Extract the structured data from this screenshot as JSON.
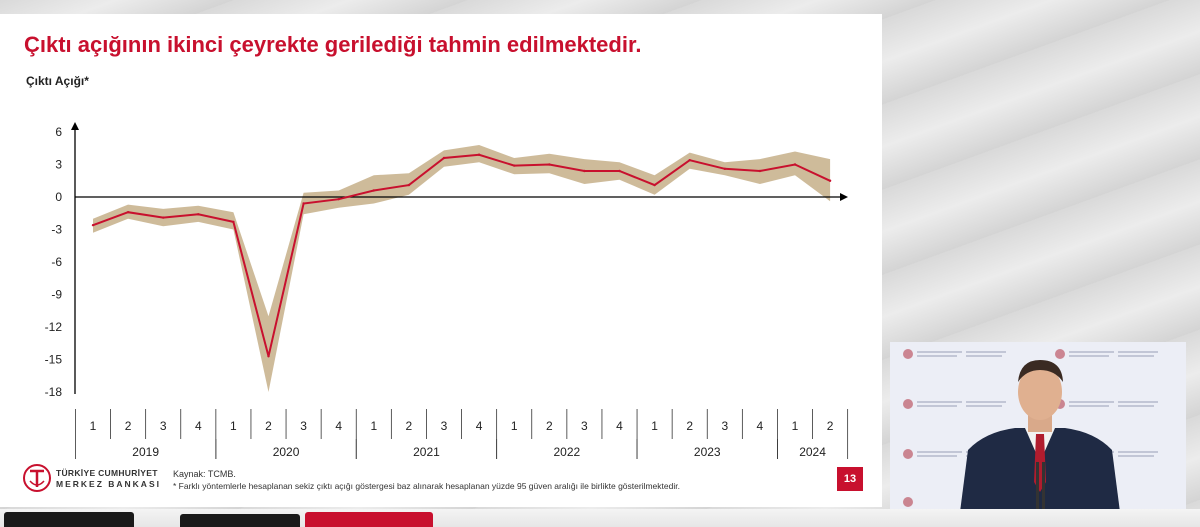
{
  "slide": {
    "title": "Çıktı açığının ikinci çeyrekte gerilediği tahmin edilmektedir.",
    "page_number": "13",
    "source": "Kaynak: TCMB.",
    "footnote": "* Farklı yöntemlerle hesaplanan sekiz çıktı açığı göstergesi baz alınarak hesaplanan yüzde 95 güven aralığı ile birlikte gösterilmektedir.",
    "logo": {
      "line1": "TÜRKİYE CUMHURİYET",
      "line2": "MERKEZ BANKASI",
      "mark": "TCMB"
    }
  },
  "colors": {
    "title": "#c8102e",
    "line": "#c8102e",
    "band": "#c9b48f",
    "axis": "#000000"
  },
  "chart_data": {
    "type": "line",
    "ylabel": "Çıktı Açığı*",
    "xlabel": "",
    "ylim": [
      -18,
      6
    ],
    "yticks": [
      6,
      3,
      0,
      -3,
      -6,
      -9,
      -12,
      -15,
      -18
    ],
    "grid": false,
    "x_quarters": [
      "1",
      "2",
      "3",
      "4",
      "1",
      "2",
      "3",
      "4",
      "1",
      "2",
      "3",
      "4",
      "1",
      "2",
      "3",
      "4",
      "1",
      "2",
      "3",
      "4",
      "1",
      "2"
    ],
    "x_years": [
      {
        "label": "2019",
        "quarters": 4
      },
      {
        "label": "2020",
        "quarters": 4
      },
      {
        "label": "2021",
        "quarters": 4
      },
      {
        "label": "2022",
        "quarters": 4
      },
      {
        "label": "2023",
        "quarters": 4
      },
      {
        "label": "2024",
        "quarters": 2
      }
    ],
    "series": [
      {
        "values": [
          -2.6,
          -1.4,
          -1.9,
          -1.6,
          -2.3,
          -14.7,
          -0.6,
          -0.2,
          0.6,
          1.1,
          3.6,
          3.9,
          2.9,
          3.0,
          2.4,
          2.4,
          1.1,
          3.4,
          2.6,
          2.4,
          3.0,
          1.5
        ],
        "lower": [
          -3.3,
          -2.0,
          -2.7,
          -2.3,
          -3.0,
          -18.0,
          -1.6,
          -1.0,
          -0.6,
          0.2,
          2.8,
          3.2,
          2.1,
          2.2,
          1.2,
          1.6,
          0.2,
          2.6,
          2.0,
          1.2,
          2.0,
          -0.4
        ],
        "upper": [
          -2.0,
          -0.7,
          -1.1,
          -0.8,
          -1.4,
          -11.0,
          0.4,
          0.6,
          2.0,
          2.2,
          4.3,
          4.8,
          3.6,
          4.0,
          3.5,
          3.2,
          2.0,
          4.1,
          3.2,
          3.5,
          4.2,
          3.5
        ]
      }
    ]
  }
}
